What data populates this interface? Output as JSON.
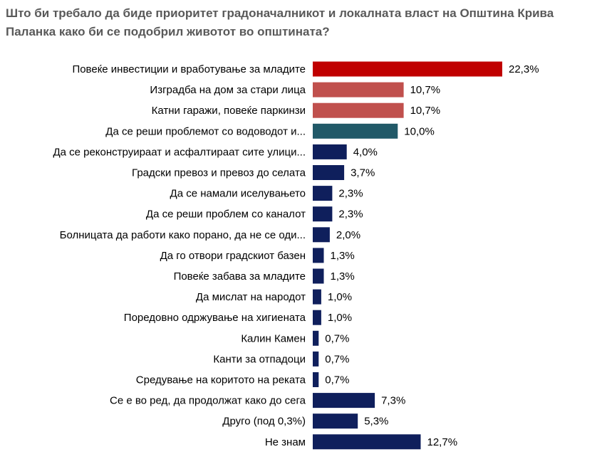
{
  "chart_data": {
    "type": "bar",
    "orientation": "horizontal",
    "title": "Што би требало да биде приоритет градоначалникот и локалната власт на Општина Крива Паланка како би се подобрил животот во општината?",
    "categories": [
      "Повеќе инвестиции и вработување за младите",
      "Изградба на дом за стари лица",
      "Катни гаражи, повеќе паркинзи",
      "Да се реши проблемот со водоводот и...",
      "Да се реконструираат и асфалтираат сите улици...",
      "Градски превоз и превоз до селата",
      "Да се намали иселувањето",
      "Да се реши проблем со каналот",
      "Болницата да работи како порано, да не се оди...",
      "Да го отвори градскиот базен",
      "Повеќе забава за младите",
      "Да мислат на народот",
      "Поредовно одржување на хигиената",
      "Калин Камен",
      "Канти за отпадоци",
      "Средување на коритото на реката",
      "Се е во ред, да продолжат како до сега",
      "Друго (под 0,3%)",
      "Не знам"
    ],
    "values": [
      22.3,
      10.7,
      10.7,
      10.0,
      4.0,
      3.7,
      2.3,
      2.3,
      2.0,
      1.3,
      1.3,
      1.0,
      1.0,
      0.7,
      0.7,
      0.7,
      7.3,
      5.3,
      12.7
    ],
    "value_labels": [
      "22,3%",
      "10,7%",
      "10,7%",
      "10,0%",
      "4,0%",
      "3,7%",
      "2,3%",
      "2,3%",
      "2,0%",
      "1,3%",
      "1,3%",
      "1,0%",
      "1,0%",
      "0,7%",
      "0,7%",
      "0,7%",
      "7,3%",
      "5,3%",
      "12,7%"
    ],
    "bar_colors": [
      "#c00000",
      "#c0504d",
      "#c0504d",
      "#215968",
      "#0f1f5c",
      "#0f1f5c",
      "#0f1f5c",
      "#0f1f5c",
      "#0f1f5c",
      "#0f1f5c",
      "#0f1f5c",
      "#0f1f5c",
      "#0f1f5c",
      "#0f1f5c",
      "#0f1f5c",
      "#0f1f5c",
      "#0f1f5c",
      "#0f1f5c",
      "#0f1f5c"
    ],
    "xlim": [
      0,
      22.3
    ],
    "grid": false,
    "legend": "none"
  }
}
